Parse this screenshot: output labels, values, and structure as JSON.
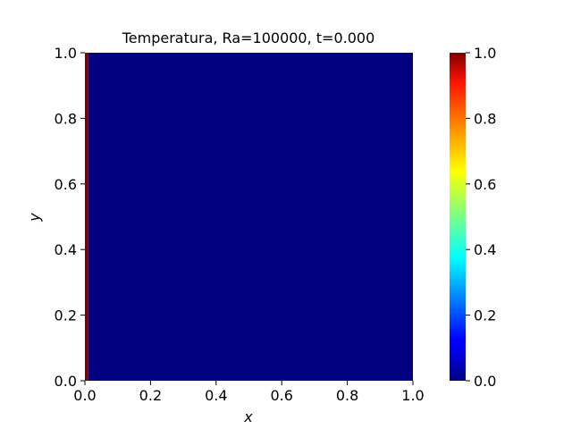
{
  "chart_data": {
    "type": "heatmap",
    "title": "Temperatura, Ra=100000, t=0.000",
    "xlabel": "x",
    "ylabel": "y",
    "xlim": [
      0.0,
      1.0
    ],
    "ylim": [
      0.0,
      1.0
    ],
    "x_ticks": [
      "0.0",
      "0.2",
      "0.4",
      "0.6",
      "0.8",
      "1.0"
    ],
    "y_ticks": [
      "0.0",
      "0.2",
      "0.4",
      "0.6",
      "0.8",
      "1.0"
    ],
    "colormap": "jet",
    "colorbar": {
      "range": [
        0.0,
        1.0
      ],
      "ticks": [
        "0.0",
        "0.2",
        "0.4",
        "0.6",
        "0.8",
        "1.0"
      ]
    },
    "field": {
      "description_of_values": "hot left wall, cold interior",
      "regions": [
        {
          "x_from": 0.0,
          "x_to": 0.01,
          "value": 1.0
        },
        {
          "x_from": 0.01,
          "x_to": 1.0,
          "value": 0.0
        }
      ]
    },
    "grid": false
  }
}
